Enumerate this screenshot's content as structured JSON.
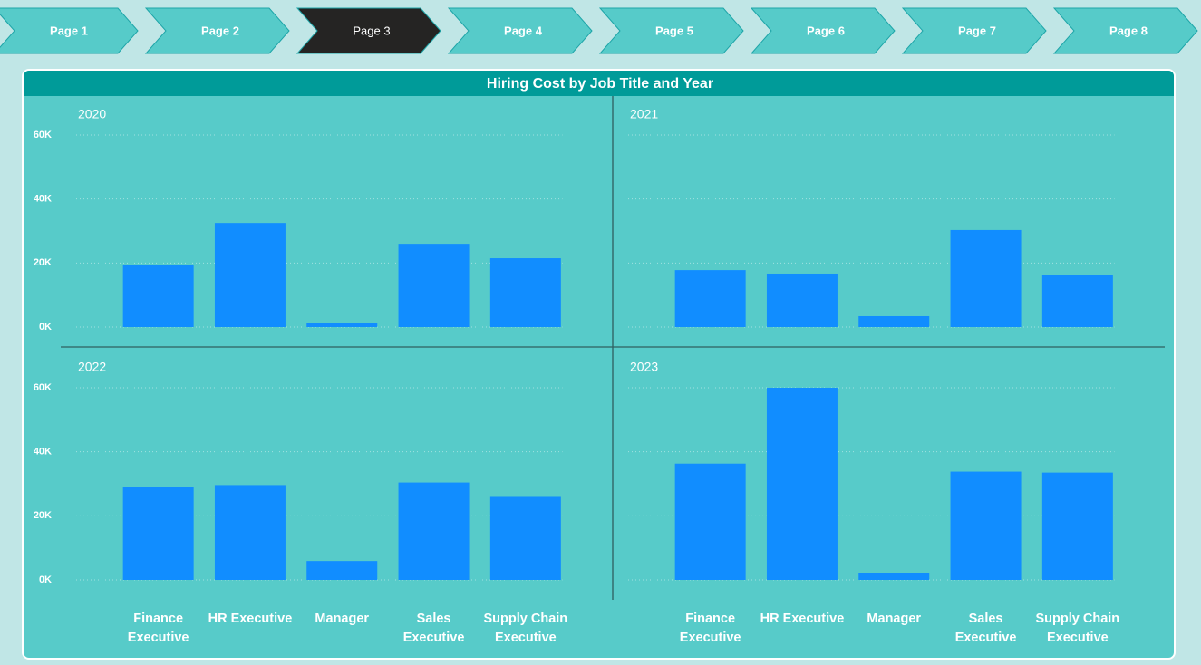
{
  "nav": {
    "pages": [
      "Page 1",
      "Page 2",
      "Page 3",
      "Page 4",
      "Page 5",
      "Page 6",
      "Page 7",
      "Page 8"
    ],
    "selected": 2
  },
  "chart_data": {
    "type": "bar",
    "title": "Hiring Cost by Job Title and Year",
    "categories": [
      "Finance Executive",
      "HR Executive",
      "Manager",
      "Sales Executive",
      "Supply Chain Executive"
    ],
    "series": [
      {
        "name": "2020",
        "color": "#118dff",
        "values": [
          19500,
          32500,
          1400,
          26000,
          21500
        ]
      },
      {
        "name": "2021",
        "color": "#118dff",
        "values": [
          17800,
          16700,
          3400,
          30300,
          16400
        ]
      },
      {
        "name": "2022",
        "color": "#118dff",
        "values": [
          29000,
          29600,
          5900,
          30400,
          25900
        ]
      },
      {
        "name": "2023",
        "color": "#118dff",
        "values": [
          36300,
          60000,
          2000,
          33800,
          33500
        ]
      }
    ],
    "ylim": [
      0,
      60000
    ],
    "yticks": [
      {
        "value": 0,
        "label": "0K"
      },
      {
        "value": 20000,
        "label": "20K"
      },
      {
        "value": 40000,
        "label": "40K"
      },
      {
        "value": 60000,
        "label": "60K"
      }
    ],
    "grid": true
  }
}
